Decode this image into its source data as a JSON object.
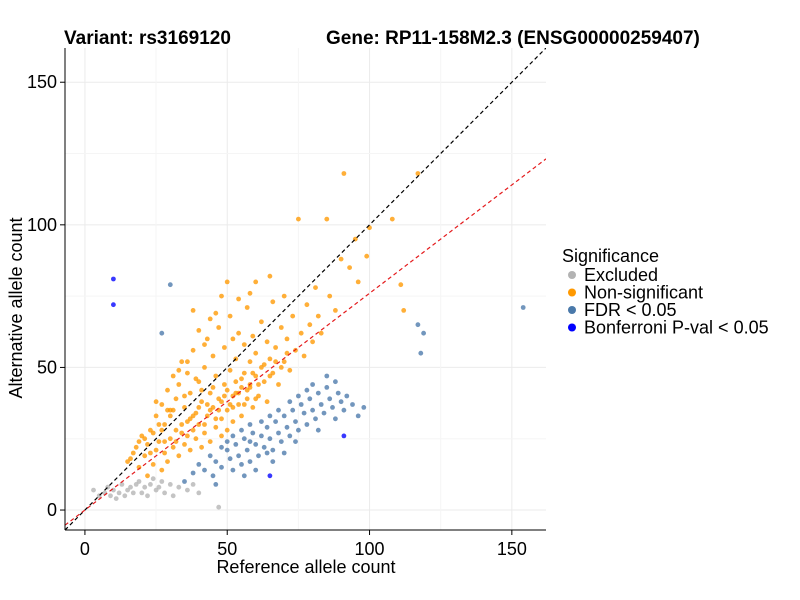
{
  "chart_data": {
    "type": "scatter",
    "title_left": "Variant: rs3169120",
    "title_right": "Gene: RP11-158M2.3 (ENSG00000259407)",
    "xlabel": "Reference allele count",
    "ylabel": "Alternative allele count",
    "xlim": [
      -7,
      162
    ],
    "ylim": [
      -7,
      162
    ],
    "xticks": [
      0,
      50,
      100,
      150
    ],
    "yticks": [
      0,
      50,
      100,
      150
    ],
    "grid": true,
    "reference_lines": [
      {
        "name": "y = x",
        "slope": 1.0,
        "intercept": 0,
        "color": "#000000",
        "style": "dashed"
      },
      {
        "name": "expected ratio",
        "slope": 0.76,
        "intercept": 0,
        "color": "#e41a1c",
        "style": "dashed"
      }
    ],
    "legend": {
      "title": "Significance",
      "position": "right",
      "entries": [
        {
          "label": "Excluded",
          "color": "#b3b3b3"
        },
        {
          "label": "Non-significant",
          "color": "#ff9900"
        },
        {
          "label": "FDR < 0.05",
          "color": "#4a79aa"
        },
        {
          "label": "Bonferroni P-val < 0.05",
          "color": "#0000ff"
        }
      ]
    },
    "series": [
      {
        "name": "Excluded",
        "color": "#b3b3b3",
        "points": [
          [
            3,
            7
          ],
          [
            5,
            5
          ],
          [
            7,
            6
          ],
          [
            8,
            8
          ],
          [
            9,
            5
          ],
          [
            10,
            7
          ],
          [
            11,
            4
          ],
          [
            12,
            6
          ],
          [
            13,
            9
          ],
          [
            14,
            5
          ],
          [
            15,
            7
          ],
          [
            16,
            8
          ],
          [
            17,
            6
          ],
          [
            18,
            9
          ],
          [
            19,
            10
          ],
          [
            20,
            6
          ],
          [
            21,
            8
          ],
          [
            22,
            5
          ],
          [
            23,
            9
          ],
          [
            24,
            11
          ],
          [
            25,
            7
          ],
          [
            26,
            8
          ],
          [
            27,
            10
          ],
          [
            28,
            6
          ],
          [
            30,
            9
          ],
          [
            31,
            5
          ],
          [
            33,
            8
          ],
          [
            36,
            7
          ],
          [
            38,
            9
          ],
          [
            40,
            6
          ],
          [
            47,
            1
          ]
        ]
      },
      {
        "name": "Non-significant",
        "color": "#ff9900",
        "points": [
          [
            16,
            18
          ],
          [
            18,
            22
          ],
          [
            19,
            15
          ],
          [
            20,
            26
          ],
          [
            21,
            19
          ],
          [
            22,
            12
          ],
          [
            23,
            28
          ],
          [
            24,
            16
          ],
          [
            25,
            21
          ],
          [
            25,
            33
          ],
          [
            26,
            24
          ],
          [
            27,
            14
          ],
          [
            27,
            37
          ],
          [
            28,
            20
          ],
          [
            28,
            30
          ],
          [
            29,
            17
          ],
          [
            29,
            42
          ],
          [
            30,
            25
          ],
          [
            30,
            35
          ],
          [
            31,
            22
          ],
          [
            31,
            47
          ],
          [
            32,
            28
          ],
          [
            32,
            39
          ],
          [
            33,
            19
          ],
          [
            33,
            44
          ],
          [
            34,
            27
          ],
          [
            34,
            52
          ],
          [
            35,
            23
          ],
          [
            35,
            36
          ],
          [
            36,
            31
          ],
          [
            36,
            48
          ],
          [
            37,
            21
          ],
          [
            37,
            41
          ],
          [
            38,
            28
          ],
          [
            38,
            56
          ],
          [
            39,
            34
          ],
          [
            39,
            25
          ],
          [
            40,
            45
          ],
          [
            40,
            30
          ],
          [
            41,
            22
          ],
          [
            41,
            38
          ],
          [
            42,
            50
          ],
          [
            42,
            27
          ],
          [
            43,
            33
          ],
          [
            43,
            60
          ],
          [
            44,
            41
          ],
          [
            44,
            24
          ],
          [
            45,
            36
          ],
          [
            45,
            54
          ],
          [
            46,
            29
          ],
          [
            46,
            47
          ],
          [
            47,
            39
          ],
          [
            47,
            64
          ],
          [
            48,
            32
          ],
          [
            48,
            26
          ],
          [
            49,
            44
          ],
          [
            49,
            57
          ],
          [
            50,
            35
          ],
          [
            50,
            28
          ],
          [
            51,
            49
          ],
          [
            51,
            68
          ],
          [
            52,
            40
          ],
          [
            52,
            31
          ],
          [
            53,
            53
          ],
          [
            53,
            45
          ],
          [
            54,
            37
          ],
          [
            54,
            62
          ],
          [
            55,
            43
          ],
          [
            55,
            33
          ],
          [
            56,
            58
          ],
          [
            56,
            48
          ],
          [
            57,
            39
          ],
          [
            57,
            71
          ],
          [
            58,
            52
          ],
          [
            58,
            44
          ],
          [
            59,
            36
          ],
          [
            59,
            61
          ],
          [
            60,
            47
          ],
          [
            60,
            55
          ],
          [
            61,
            40
          ],
          [
            62,
            66
          ],
          [
            62,
            50
          ],
          [
            63,
            45
          ],
          [
            64,
            59
          ],
          [
            64,
            38
          ],
          [
            65,
            53
          ],
          [
            66,
            73
          ],
          [
            66,
            48
          ],
          [
            67,
            57
          ],
          [
            68,
            44
          ],
          [
            69,
            64
          ],
          [
            70,
            52
          ],
          [
            71,
            60
          ],
          [
            72,
            49
          ],
          [
            73,
            68
          ],
          [
            74,
            56
          ],
          [
            75,
            102
          ],
          [
            76,
            62
          ],
          [
            77,
            54
          ],
          [
            78,
            72
          ],
          [
            79,
            65
          ],
          [
            80,
            59
          ],
          [
            81,
            78
          ],
          [
            82,
            68
          ],
          [
            83,
            62
          ],
          [
            85,
            102
          ],
          [
            86,
            75
          ],
          [
            88,
            70
          ],
          [
            90,
            88
          ],
          [
            91,
            118
          ],
          [
            93,
            85
          ],
          [
            95,
            95
          ],
          [
            96,
            80
          ],
          [
            99,
            89
          ],
          [
            100,
            99
          ],
          [
            108,
            102
          ],
          [
            111,
            79
          ],
          [
            112,
            70
          ],
          [
            117,
            118
          ],
          [
            30,
            33
          ],
          [
            32,
            24
          ],
          [
            34,
            30
          ],
          [
            36,
            26
          ],
          [
            38,
            33
          ],
          [
            40,
            36
          ],
          [
            42,
            30
          ],
          [
            44,
            35
          ],
          [
            46,
            32
          ],
          [
            48,
            38
          ],
          [
            50,
            42
          ],
          [
            52,
            36
          ],
          [
            54,
            41
          ],
          [
            56,
            37
          ],
          [
            58,
            43
          ],
          [
            60,
            39
          ],
          [
            22,
            23
          ],
          [
            24,
            27
          ],
          [
            26,
            30
          ],
          [
            28,
            24
          ],
          [
            31,
            35
          ],
          [
            35,
            40
          ],
          [
            37,
            32
          ],
          [
            39,
            46
          ],
          [
            41,
            42
          ],
          [
            43,
            37
          ],
          [
            45,
            43
          ],
          [
            47,
            35
          ],
          [
            49,
            40
          ],
          [
            51,
            37
          ],
          [
            53,
            41
          ],
          [
            55,
            46
          ],
          [
            57,
            42
          ],
          [
            59,
            48
          ],
          [
            61,
            44
          ],
          [
            63,
            51
          ],
          [
            65,
            47
          ],
          [
            67,
            52
          ],
          [
            69,
            50
          ],
          [
            71,
            55
          ],
          [
            46,
            69
          ],
          [
            50,
            80
          ],
          [
            54,
            74
          ],
          [
            38,
            70
          ],
          [
            42,
            58
          ],
          [
            48,
            75
          ],
          [
            44,
            67
          ],
          [
            60,
            80
          ],
          [
            65,
            82
          ],
          [
            70,
            75
          ],
          [
            58,
            76
          ],
          [
            36,
            52
          ],
          [
            40,
            63
          ],
          [
            52,
            60
          ],
          [
            33,
            49
          ],
          [
            29,
            35
          ],
          [
            27,
            28
          ],
          [
            25,
            38
          ],
          [
            23,
            20
          ],
          [
            21,
            25
          ],
          [
            19,
            24
          ],
          [
            17,
            20
          ],
          [
            15,
            17
          ]
        ]
      },
      {
        "name": "FDR < 0.05",
        "color": "#4a79aa",
        "points": [
          [
            27,
            62
          ],
          [
            30,
            79
          ],
          [
            35,
            10
          ],
          [
            38,
            13
          ],
          [
            40,
            16
          ],
          [
            42,
            14
          ],
          [
            44,
            19
          ],
          [
            45,
            12
          ],
          [
            46,
            17
          ],
          [
            48,
            15
          ],
          [
            50,
            21
          ],
          [
            51,
            18
          ],
          [
            52,
            14
          ],
          [
            53,
            23
          ],
          [
            54,
            19
          ],
          [
            55,
            16
          ],
          [
            56,
            25
          ],
          [
            57,
            21
          ],
          [
            58,
            17
          ],
          [
            59,
            27
          ],
          [
            60,
            23
          ],
          [
            61,
            19
          ],
          [
            62,
            26
          ],
          [
            63,
            22
          ],
          [
            64,
            29
          ],
          [
            65,
            25
          ],
          [
            66,
            21
          ],
          [
            67,
            31
          ],
          [
            68,
            27
          ],
          [
            69,
            24
          ],
          [
            70,
            33
          ],
          [
            71,
            29
          ],
          [
            72,
            26
          ],
          [
            73,
            35
          ],
          [
            74,
            31
          ],
          [
            75,
            28
          ],
          [
            76,
            37
          ],
          [
            77,
            34
          ],
          [
            78,
            30
          ],
          [
            79,
            39
          ],
          [
            80,
            35
          ],
          [
            81,
            32
          ],
          [
            82,
            41
          ],
          [
            83,
            37
          ],
          [
            84,
            34
          ],
          [
            85,
            43
          ],
          [
            86,
            39
          ],
          [
            87,
            36
          ],
          [
            88,
            45
          ],
          [
            89,
            41
          ],
          [
            90,
            38
          ],
          [
            91,
            35
          ],
          [
            92,
            40
          ],
          [
            94,
            37
          ],
          [
            96,
            33
          ],
          [
            98,
            36
          ],
          [
            85,
            47
          ],
          [
            80,
            44
          ],
          [
            78,
            42
          ],
          [
            75,
            40
          ],
          [
            72,
            38
          ],
          [
            68,
            35
          ],
          [
            65,
            33
          ],
          [
            62,
            31
          ],
          [
            58,
            30
          ],
          [
            55,
            28
          ],
          [
            52,
            26
          ],
          [
            50,
            24
          ],
          [
            48,
            22
          ],
          [
            70,
            20
          ],
          [
            66,
            17
          ],
          [
            60,
            14
          ],
          [
            56,
            12
          ],
          [
            46,
            9
          ],
          [
            58,
            24
          ],
          [
            64,
            20
          ],
          [
            74,
            24
          ],
          [
            82,
            28
          ],
          [
            88,
            32
          ],
          [
            117,
            65
          ],
          [
            119,
            62
          ],
          [
            118,
            55
          ],
          [
            154,
            71
          ]
        ]
      },
      {
        "name": "Bonferroni P-val < 0.05",
        "color": "#0000ff",
        "points": [
          [
            10,
            81
          ],
          [
            10,
            72
          ],
          [
            91,
            26
          ],
          [
            65,
            12
          ]
        ]
      }
    ]
  }
}
